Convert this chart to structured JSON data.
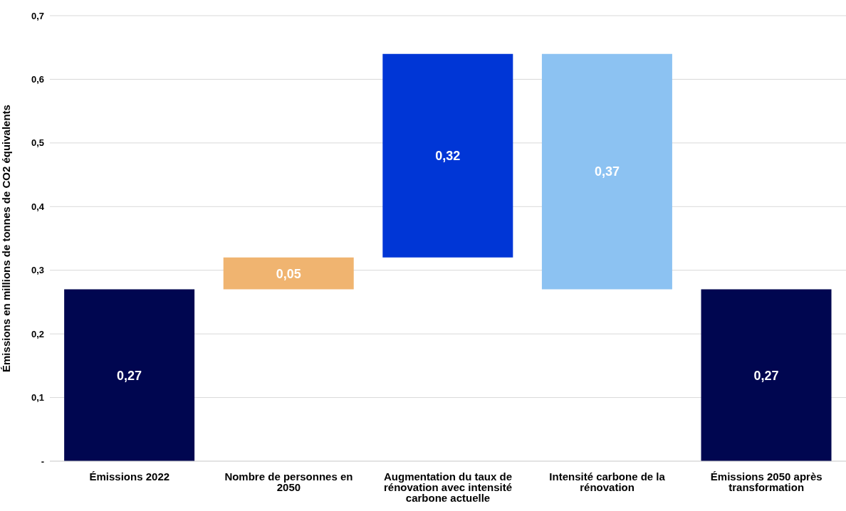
{
  "chart_data": {
    "type": "bar",
    "ylabel": "Émissions en millions de tonnes de CO2 équivalents",
    "categories": [
      "Émissions 2022",
      "Nombre de personnes en 2050",
      "Augmentation du taux de rénovation avec intensité carbone actuelle",
      "Intensité carbone de la rénovation",
      "Émissions 2050 après transformation"
    ],
    "values": [
      0.27,
      0.05,
      0.32,
      0.37,
      0.27
    ],
    "base": [
      0,
      0.27,
      0.32,
      0.27,
      0
    ],
    "colors": [
      "#000650",
      "#f0b470",
      "#0036d6",
      "#8cc2f2",
      "#000650"
    ],
    "ylim": [
      0,
      0.7
    ],
    "yticks": [
      {
        "value": 0,
        "label": "-"
      },
      {
        "value": 0.1,
        "label": "0,1"
      },
      {
        "value": 0.2,
        "label": "0,2"
      },
      {
        "value": 0.3,
        "label": "0,3"
      },
      {
        "value": 0.4,
        "label": "0,4"
      },
      {
        "value": 0.5,
        "label": "0,5"
      },
      {
        "value": 0.6,
        "label": "0,6"
      },
      {
        "value": 0.7,
        "label": "0,7"
      }
    ],
    "value_labels": [
      "0,27",
      "0,05",
      "0,32",
      "0,37",
      "0,27"
    ],
    "grid": "y"
  }
}
